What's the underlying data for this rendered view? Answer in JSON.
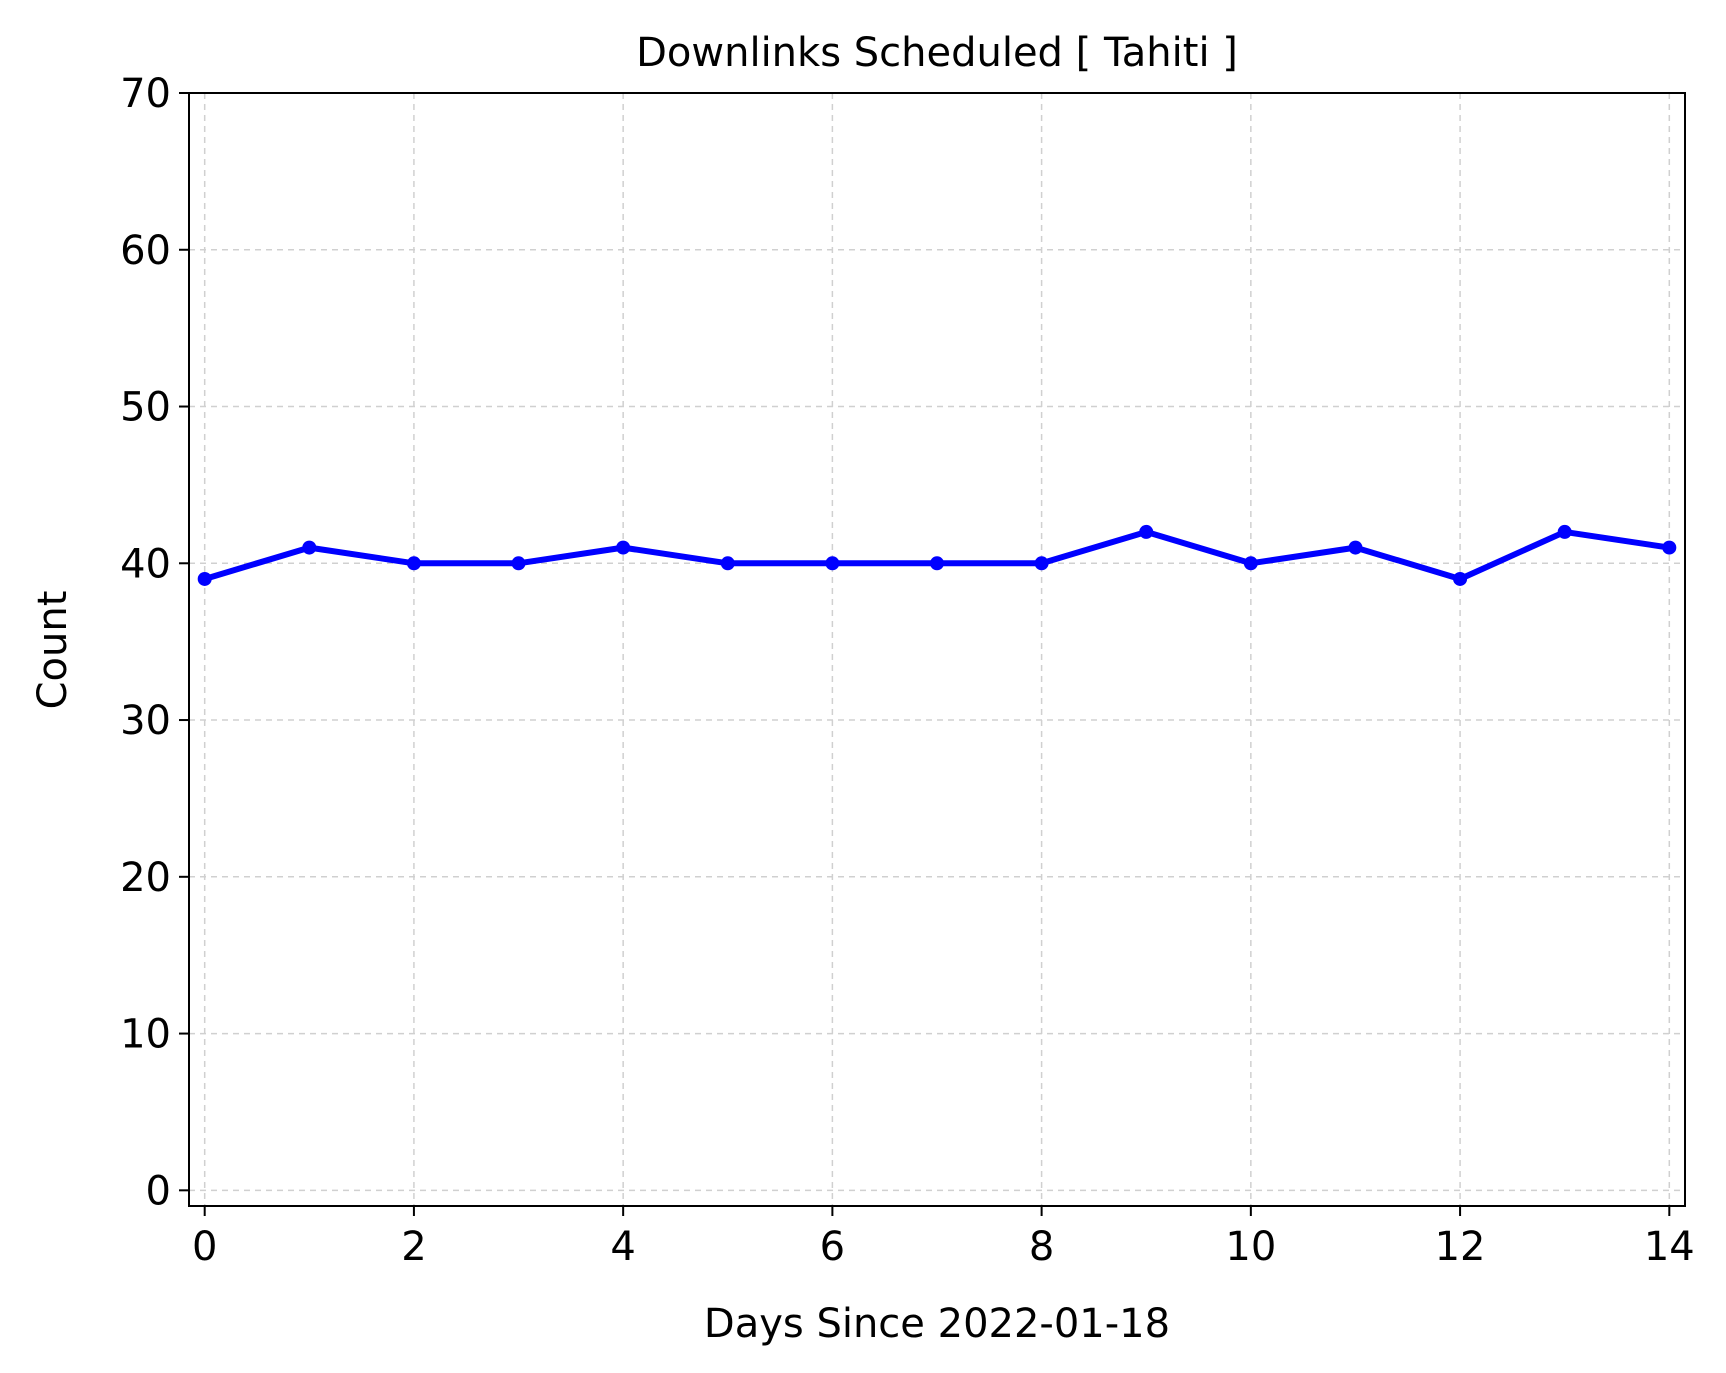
{
  "chart_data": {
    "type": "line",
    "title": "Downlinks Scheduled [ Tahiti ]",
    "xlabel": "Days Since 2022-01-18",
    "ylabel": "Count",
    "xlim": [
      -0.15,
      14.15
    ],
    "ylim": [
      -1,
      70
    ],
    "xticks": [
      0,
      2,
      4,
      6,
      8,
      10,
      12,
      14
    ],
    "yticks": [
      0,
      10,
      20,
      30,
      40,
      50,
      60,
      70
    ],
    "grid": true,
    "series": [
      {
        "color": "#0000ff",
        "x": [
          0,
          1,
          2,
          3,
          4,
          5,
          6,
          7,
          8,
          9,
          10,
          11,
          12,
          13,
          14
        ],
        "y": [
          39,
          41,
          40,
          40,
          41,
          40,
          40,
          40,
          40,
          42,
          40,
          41,
          39,
          42,
          41
        ]
      }
    ]
  }
}
